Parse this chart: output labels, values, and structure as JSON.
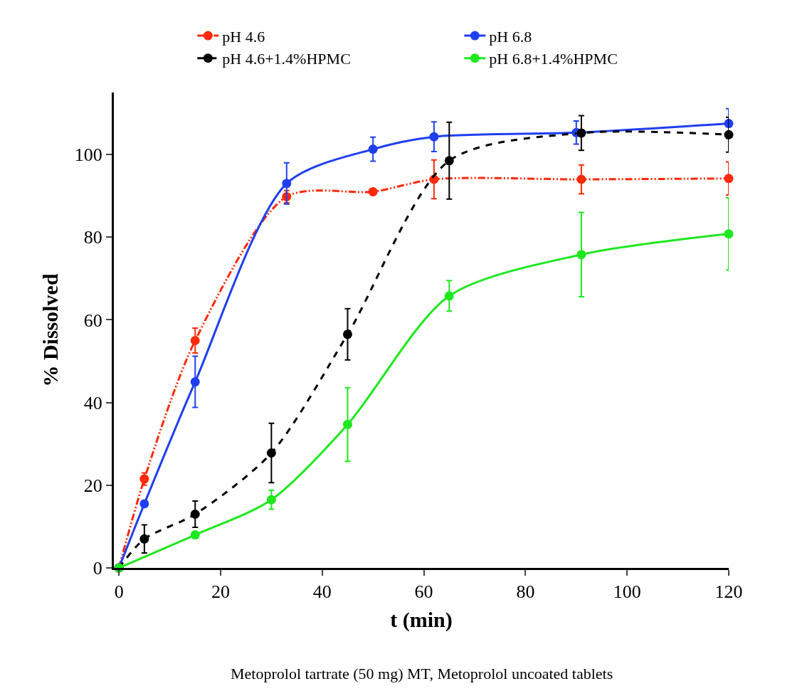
{
  "chart_data": {
    "type": "line",
    "xlabel": "t (min)",
    "ylabel": "% Dissolved",
    "annotations": [
      "Metoprolol tartrate (50 mg) MT, Metoprolol uncoated tablets"
    ],
    "xlim": [
      -1,
      120
    ],
    "xticks": [
      0,
      20,
      40,
      60,
      80,
      100,
      120
    ],
    "ylim": [
      0,
      115
    ],
    "yticks": [
      0,
      20,
      40,
      60,
      80,
      100
    ],
    "legend": "top",
    "marker": "circle",
    "series": [
      {
        "name": "pH 4.6",
        "color": "#ff2a0a",
        "line_style": "dashdotdot",
        "x": [
          0,
          5,
          15,
          33,
          50,
          62,
          91,
          120
        ],
        "values": [
          0,
          21.5,
          55,
          89.8,
          91,
          94,
          94,
          94.2
        ],
        "errors": [
          null,
          1.5,
          3,
          1.5,
          null,
          4.7,
          3.5,
          4
        ]
      },
      {
        "name": "pH 6.8",
        "color": "#1f3ff0",
        "line_style": "solid",
        "x": [
          0,
          5,
          15,
          33,
          50,
          62,
          90,
          120
        ],
        "values": [
          0,
          15.5,
          45,
          93,
          101.3,
          104.3,
          105.3,
          107.5
        ],
        "errors": [
          null,
          null,
          6.2,
          5,
          2.9,
          3.6,
          2.8,
          3.6
        ]
      },
      {
        "name": "pH 4.6+1.4%HPMC",
        "color": "#000000",
        "line_style": "dashed",
        "x": [
          0,
          5,
          15,
          30,
          45,
          65,
          91,
          120
        ],
        "values": [
          0,
          7,
          13,
          27.8,
          56.5,
          98.5,
          105.2,
          104.8
        ],
        "errors": [
          null,
          3.4,
          3.2,
          7.2,
          6.2,
          9.3,
          4.2,
          4.2
        ]
      },
      {
        "name": "pH 6.8+1.4%HPMC",
        "color": "#1ee81e",
        "line_style": "solid",
        "x": [
          0,
          15,
          30,
          45,
          65,
          91,
          120
        ],
        "values": [
          0,
          8,
          16.5,
          34.7,
          65.8,
          75.8,
          80.8
        ],
        "errors": [
          null,
          null,
          2.3,
          8.9,
          3.7,
          10.2,
          8.7
        ]
      }
    ]
  }
}
